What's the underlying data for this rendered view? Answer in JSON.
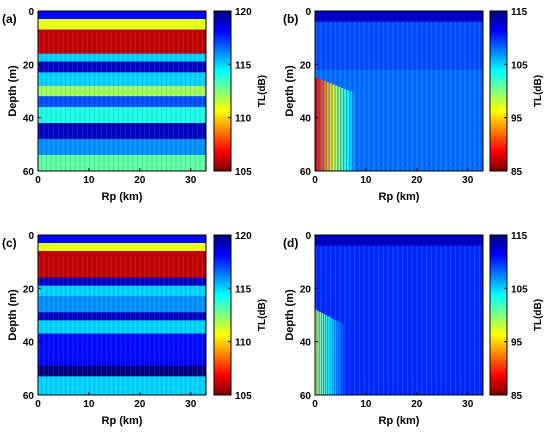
{
  "chart_data": [
    {
      "panel_label": "(a)",
      "type": "heatmap",
      "xlabel": "Rp (km)",
      "ylabel": "Depth (m)",
      "xlim": [
        0,
        33
      ],
      "ylim": [
        0,
        60
      ],
      "y_inverted": true,
      "xticks": [
        "0",
        "10",
        "20",
        "30"
      ],
      "yticks": [
        "0",
        "20",
        "40",
        "60"
      ],
      "colorbar": {
        "label": "TL(dB)",
        "min": 105,
        "max": 120,
        "ticks": [
          "120",
          "115",
          "110",
          "105"
        ],
        "colormap": "jet-reversed"
      },
      "bands": [
        {
          "depth": [
            0,
            3
          ],
          "tl": 118
        },
        {
          "depth": [
            3,
            7
          ],
          "tl": 111
        },
        {
          "depth": [
            7,
            16
          ],
          "tl": 106
        },
        {
          "depth": [
            16,
            19
          ],
          "tl": 115
        },
        {
          "depth": [
            19,
            23
          ],
          "tl": 119
        },
        {
          "depth": [
            23,
            28
          ],
          "tl": 115
        },
        {
          "depth": [
            28,
            32
          ],
          "tl": 112
        },
        {
          "depth": [
            32,
            36
          ],
          "tl": 117
        },
        {
          "depth": [
            36,
            42
          ],
          "tl": 114
        },
        {
          "depth": [
            42,
            48
          ],
          "tl": 119
        },
        {
          "depth": [
            48,
            54
          ],
          "tl": 116
        },
        {
          "depth": [
            54,
            60
          ],
          "tl": 113
        }
      ]
    },
    {
      "panel_label": "(b)",
      "type": "heatmap",
      "xlabel": "Rp (km)",
      "ylabel": "Depth (m)",
      "xlim": [
        0,
        33
      ],
      "ylim": [
        0,
        60
      ],
      "y_inverted": true,
      "xticks": [
        "0",
        "10",
        "20",
        "30"
      ],
      "yticks": [
        "0",
        "20",
        "40",
        "60"
      ],
      "colorbar": {
        "label": "TL(dB)",
        "min": 85,
        "max": 115,
        "ticks": [
          "115",
          "105",
          "95",
          "85"
        ],
        "colormap": "jet-reversed"
      },
      "bands": [
        {
          "depth": [
            0,
            4
          ],
          "tl": 113
        },
        {
          "depth": [
            4,
            22
          ],
          "tl": 109
        },
        {
          "depth": [
            22,
            60
          ],
          "tl": 108
        }
      ],
      "hotspot": {
        "range": [
          0,
          8
        ],
        "depth": [
          25,
          60
        ],
        "tl": 88
      }
    },
    {
      "panel_label": "(c)",
      "type": "heatmap",
      "xlabel": "Rp (km)",
      "ylabel": "Depth (m)",
      "xlim": [
        0,
        33
      ],
      "ylim": [
        0,
        60
      ],
      "y_inverted": true,
      "xticks": [
        "0",
        "10",
        "20",
        "30"
      ],
      "yticks": [
        "0",
        "20",
        "40",
        "60"
      ],
      "colorbar": {
        "label": "TL(dB)",
        "min": 105,
        "max": 120,
        "ticks": [
          "120",
          "115",
          "110",
          "105"
        ],
        "colormap": "jet-reversed"
      },
      "bands": [
        {
          "depth": [
            0,
            3
          ],
          "tl": 118
        },
        {
          "depth": [
            3,
            6
          ],
          "tl": 111
        },
        {
          "depth": [
            6,
            16
          ],
          "tl": 106
        },
        {
          "depth": [
            16,
            19
          ],
          "tl": 119
        },
        {
          "depth": [
            19,
            23
          ],
          "tl": 115
        },
        {
          "depth": [
            23,
            29
          ],
          "tl": 116
        },
        {
          "depth": [
            29,
            32
          ],
          "tl": 119
        },
        {
          "depth": [
            32,
            37
          ],
          "tl": 115
        },
        {
          "depth": [
            37,
            49
          ],
          "tl": 118
        },
        {
          "depth": [
            49,
            53
          ],
          "tl": 120
        },
        {
          "depth": [
            53,
            60
          ],
          "tl": 115
        }
      ]
    },
    {
      "panel_label": "(d)",
      "type": "heatmap",
      "xlabel": "Rp (km)",
      "ylabel": "Depth (m)",
      "xlim": [
        0,
        33
      ],
      "ylim": [
        0,
        60
      ],
      "y_inverted": true,
      "xticks": [
        "0",
        "10",
        "20",
        "30"
      ],
      "yticks": [
        "0",
        "20",
        "40",
        "60"
      ],
      "colorbar": {
        "label": "TL(dB)",
        "min": 85,
        "max": 115,
        "ticks": [
          "115",
          "105",
          "95",
          "85"
        ],
        "colormap": "jet-reversed"
      },
      "bands": [
        {
          "depth": [
            0,
            4
          ],
          "tl": 113
        },
        {
          "depth": [
            4,
            22
          ],
          "tl": 110
        },
        {
          "depth": [
            22,
            60
          ],
          "tl": 110
        }
      ],
      "hotspot": {
        "range": [
          0,
          6
        ],
        "depth": [
          28,
          60
        ],
        "tl": 98
      }
    }
  ]
}
